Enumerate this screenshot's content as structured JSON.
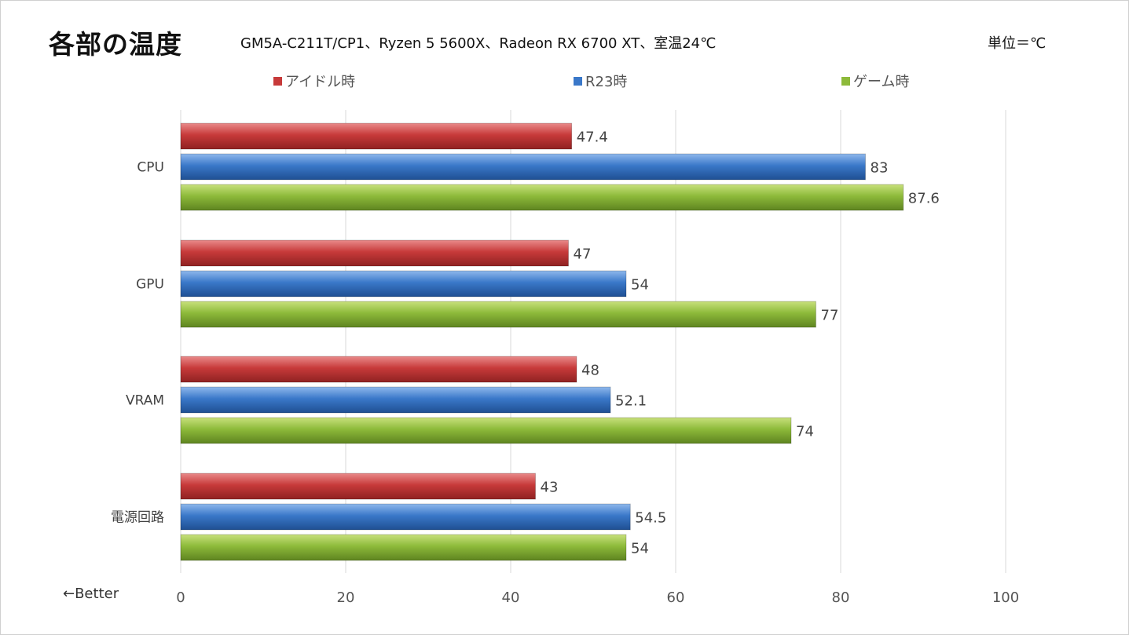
{
  "title": "各部の温度",
  "subtitle": "GM5A-C211T/CP1、Ryzen 5 5600X、Radeon RX 6700 XT、室温24℃",
  "unit": "単位＝℃",
  "note": "←Better",
  "colors": {
    "idle": "#c73a3a",
    "r23": "#3a78c9",
    "game": "#8dba3a",
    "grid": "#d9d9d9"
  },
  "chart_data": {
    "type": "bar",
    "orientation": "horizontal",
    "categories": [
      "CPU",
      "GPU",
      "VRAM",
      "電源回路"
    ],
    "series": [
      {
        "name": "アイドル時",
        "values": [
          47.4,
          47,
          48,
          43
        ]
      },
      {
        "name": "R23時",
        "values": [
          83,
          54,
          52.1,
          54.5
        ]
      },
      {
        "name": "ゲーム時",
        "values": [
          87.6,
          77,
          74,
          54
        ]
      }
    ],
    "xlim": [
      0,
      100
    ],
    "xticks": [
      0,
      20,
      40,
      60,
      80,
      100
    ],
    "data_labels": [
      [
        "47.4",
        "83",
        "87.6"
      ],
      [
        "47",
        "54",
        "77"
      ],
      [
        "48",
        "52.1",
        "74"
      ],
      [
        "43",
        "54.5",
        "54"
      ]
    ],
    "grid": true,
    "legend_position": "top"
  }
}
